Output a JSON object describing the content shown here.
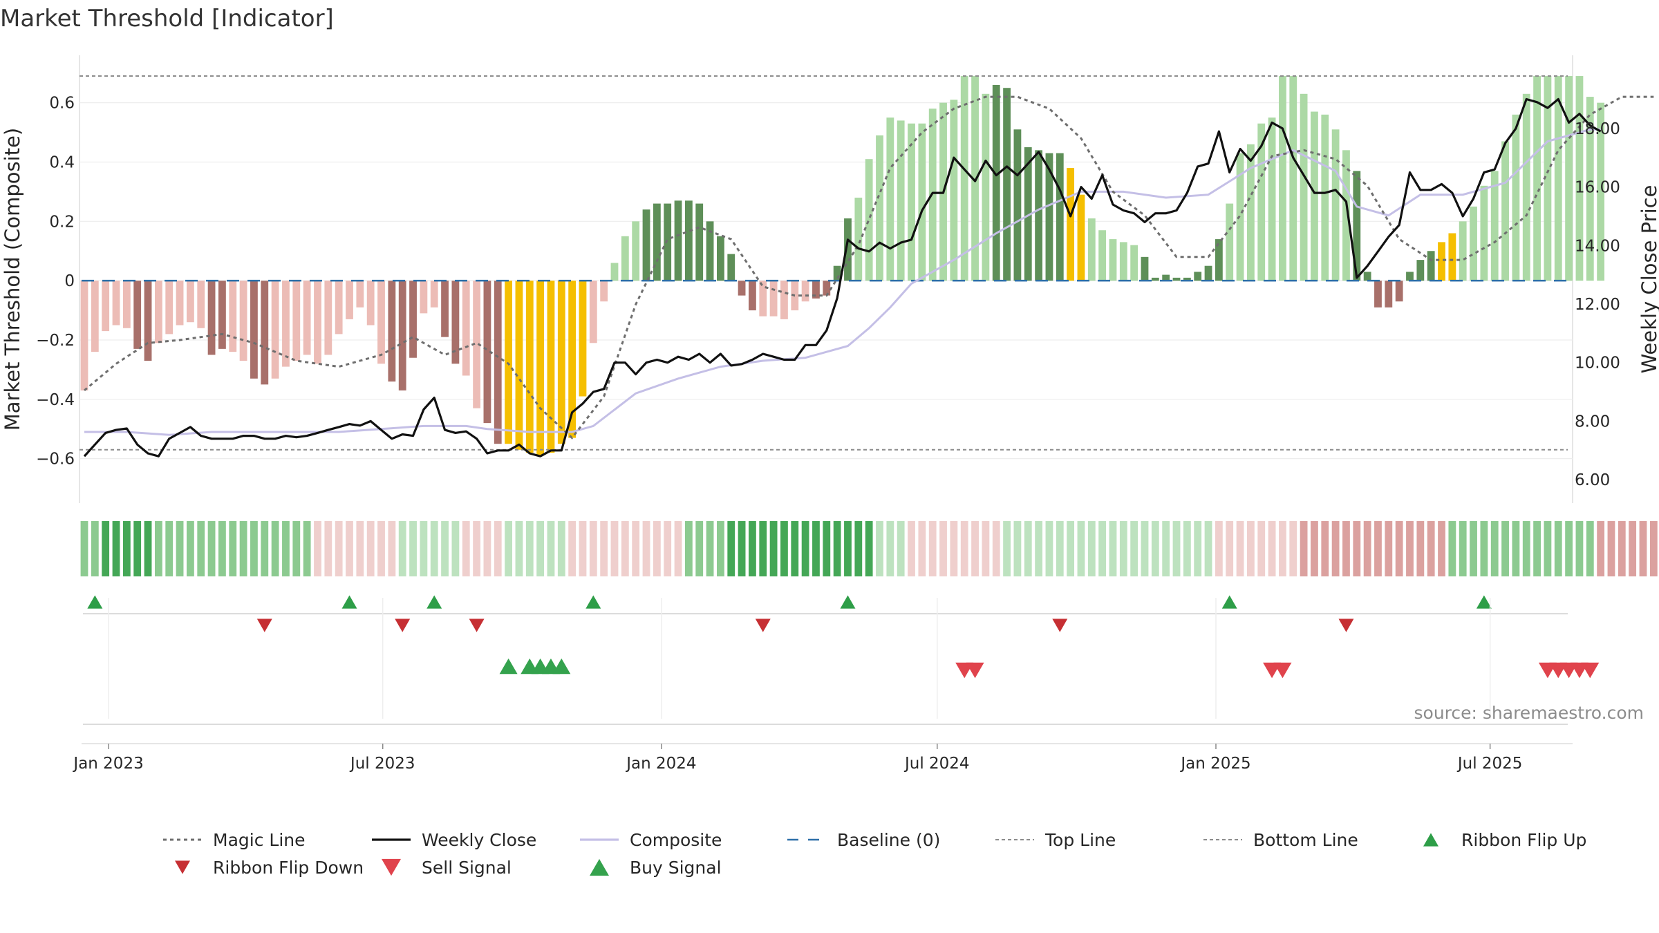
{
  "page": {
    "title": "Market Threshold [Indicator]",
    "source": "source: sharemaestro.com"
  },
  "colors": {
    "dark_green": "#5e8f58",
    "light_green": "#acd9a5",
    "dark_red": "#a8706a",
    "light_red": "#ecbcb6",
    "gold": "#f5bf00",
    "magic": "#6e6e6e",
    "close": "#111111",
    "composite": "#c4bfe6",
    "baseline": "#2c6fa8",
    "ref_line": "#8c8c8c",
    "flip_up": "#2e9e48",
    "flip_down": "#c62f33",
    "sell": "#e0434c",
    "buy": "#34a24d"
  },
  "chart_data": {
    "type": "bar",
    "title": "Market Threshold [Indicator]",
    "x_start": "2022-12-16",
    "x_interval": "weekly",
    "left_axis": {
      "label": "Market Threshold (Composite)",
      "ticks": [
        0.6,
        0.4,
        0.2,
        0,
        -0.2,
        -0.4,
        -0.6
      ],
      "tick_labels": [
        "0.6",
        "0.4",
        "0.2",
        "0",
        "−0.2",
        "−0.4",
        "−0.6"
      ],
      "range": [
        -0.75,
        0.76
      ]
    },
    "right_axis": {
      "label": "Weekly Close Price",
      "ticks": [
        18,
        16,
        14,
        12,
        10,
        8,
        6
      ],
      "tick_labels": [
        "18.00",
        "16.00",
        "14.00",
        "12.00",
        "10.00",
        "8.00",
        "6.00"
      ],
      "range": [
        5.2,
        20.5
      ]
    },
    "x_ticks": [
      {
        "label": "Jan 2023",
        "date": "2023-01-01"
      },
      {
        "label": "Jul 2023",
        "date": "2023-07-01"
      },
      {
        "label": "Jan 2024",
        "date": "2024-01-01"
      },
      {
        "label": "Jul 2024",
        "date": "2024-07-01"
      },
      {
        "label": "Jan 2025",
        "date": "2025-01-01"
      },
      {
        "label": "Jul 2025",
        "date": "2025-07-01"
      }
    ],
    "top_line": 0.69,
    "bottom_line": -0.57,
    "composite_bars": [
      -0.37,
      -0.24,
      -0.17,
      -0.15,
      -0.16,
      -0.23,
      -0.27,
      -0.21,
      -0.18,
      -0.15,
      -0.14,
      -0.16,
      -0.25,
      -0.23,
      -0.24,
      -0.27,
      -0.33,
      -0.35,
      -0.33,
      -0.29,
      -0.27,
      -0.25,
      -0.28,
      -0.25,
      -0.18,
      -0.13,
      -0.09,
      -0.15,
      -0.28,
      -0.34,
      -0.37,
      -0.26,
      -0.11,
      -0.09,
      -0.19,
      -0.28,
      -0.32,
      -0.43,
      -0.48,
      -0.55,
      -0.55,
      -0.57,
      -0.58,
      -0.59,
      -0.58,
      -0.55,
      -0.53,
      -0.39,
      -0.21,
      -0.07,
      0.06,
      0.15,
      0.2,
      0.24,
      0.26,
      0.26,
      0.27,
      0.27,
      0.26,
      0.2,
      0.15,
      0.09,
      -0.05,
      -0.1,
      -0.12,
      -0.12,
      -0.13,
      -0.1,
      -0.07,
      -0.06,
      -0.05,
      0.05,
      0.21,
      0.28,
      0.41,
      0.49,
      0.55,
      0.54,
      0.53,
      0.53,
      0.58,
      0.6,
      0.61,
      0.69,
      0.69,
      0.63,
      0.66,
      0.65,
      0.51,
      0.45,
      0.44,
      0.43,
      0.43,
      0.38,
      0.29,
      0.21,
      0.17,
      0.14,
      0.13,
      0.12,
      0.08,
      0.01,
      0.02,
      0.01,
      0.01,
      0.03,
      0.05,
      0.14,
      0.26,
      0.43,
      0.46,
      0.53,
      0.55,
      0.69,
      0.69,
      0.63,
      0.57,
      0.56,
      0.51,
      0.44,
      0.37,
      0.03,
      -0.09,
      -0.09,
      -0.07,
      0.03,
      0.07,
      0.1,
      0.13,
      0.16,
      0.2,
      0.25,
      0.32,
      0.37,
      0.47,
      0.56,
      0.63,
      0.69,
      0.69,
      0.69,
      0.69,
      0.69,
      0.62,
      0.6
    ],
    "bar_classes": "LLLLLDDLLLLLDDLLDDLLLLLLLLLLLDDDLLDDLLDDGGGGGGGGLLLLlDDDDDDDDDDDlllllDDDDLLLLllllllLLlDDDDDDDGGlllllDDDDDDDDllllllllllllDDDDDDDDGGlllllllLLLLlllDDDDDDDDDDGGGGGGl",
    "magic_line": [
      [
        0,
        -0.37
      ],
      [
        3,
        -0.28
      ],
      [
        6,
        -0.21
      ],
      [
        9,
        -0.2
      ],
      [
        13,
        -0.18
      ],
      [
        16,
        -0.21
      ],
      [
        20,
        -0.27
      ],
      [
        24,
        -0.29
      ],
      [
        28,
        -0.25
      ],
      [
        31,
        -0.19
      ],
      [
        34,
        -0.25
      ],
      [
        37,
        -0.21
      ],
      [
        40,
        -0.28
      ],
      [
        43,
        -0.43
      ],
      [
        46,
        -0.53
      ],
      [
        49,
        -0.39
      ],
      [
        52,
        -0.08
      ],
      [
        55,
        0.14
      ],
      [
        58,
        0.18
      ],
      [
        61,
        0.14
      ],
      [
        64,
        -0.02
      ],
      [
        67,
        -0.05
      ],
      [
        70,
        -0.05
      ],
      [
        73,
        0.12
      ],
      [
        76,
        0.38
      ],
      [
        79,
        0.5
      ],
      [
        82,
        0.58
      ],
      [
        85,
        0.62
      ],
      [
        88,
        0.62
      ],
      [
        91,
        0.58
      ],
      [
        94,
        0.48
      ],
      [
        97,
        0.3
      ],
      [
        100,
        0.22
      ],
      [
        103,
        0.08
      ],
      [
        106,
        0.08
      ],
      [
        109,
        0.22
      ],
      [
        112,
        0.42
      ],
      [
        115,
        0.44
      ],
      [
        118,
        0.41
      ],
      [
        121,
        0.32
      ],
      [
        124,
        0.14
      ],
      [
        127,
        0.07
      ],
      [
        130,
        0.07
      ],
      [
        133,
        0.13
      ],
      [
        136,
        0.22
      ],
      [
        139,
        0.44
      ],
      [
        142,
        0.56
      ],
      [
        145,
        0.62
      ],
      [
        148,
        0.62
      ]
    ],
    "weekly_close": [
      [
        0,
        6.8
      ],
      [
        1,
        7.2
      ],
      [
        2,
        7.6
      ],
      [
        3,
        7.7
      ],
      [
        4,
        7.75
      ],
      [
        5,
        7.2
      ],
      [
        6,
        6.9
      ],
      [
        7,
        6.8
      ],
      [
        8,
        7.4
      ],
      [
        9,
        7.6
      ],
      [
        10,
        7.8
      ],
      [
        11,
        7.5
      ],
      [
        12,
        7.4
      ],
      [
        13,
        7.4
      ],
      [
        14,
        7.4
      ],
      [
        15,
        7.5
      ],
      [
        16,
        7.5
      ],
      [
        17,
        7.4
      ],
      [
        18,
        7.4
      ],
      [
        19,
        7.5
      ],
      [
        20,
        7.45
      ],
      [
        21,
        7.5
      ],
      [
        22,
        7.6
      ],
      [
        23,
        7.7
      ],
      [
        24,
        7.8
      ],
      [
        25,
        7.9
      ],
      [
        26,
        7.85
      ],
      [
        27,
        8.0
      ],
      [
        28,
        7.7
      ],
      [
        29,
        7.4
      ],
      [
        30,
        7.55
      ],
      [
        31,
        7.5
      ],
      [
        32,
        8.4
      ],
      [
        33,
        8.8
      ],
      [
        34,
        7.7
      ],
      [
        35,
        7.6
      ],
      [
        36,
        7.65
      ],
      [
        37,
        7.4
      ],
      [
        38,
        6.9
      ],
      [
        39,
        7.0
      ],
      [
        40,
        7.0
      ],
      [
        41,
        7.2
      ],
      [
        42,
        6.9
      ],
      [
        43,
        6.8
      ],
      [
        44,
        7.0
      ],
      [
        45,
        7.0
      ],
      [
        46,
        8.3
      ],
      [
        47,
        8.6
      ],
      [
        48,
        9.0
      ],
      [
        49,
        9.1
      ],
      [
        50,
        10.0
      ],
      [
        51,
        10.0
      ],
      [
        52,
        9.6
      ],
      [
        53,
        10.0
      ],
      [
        54,
        10.1
      ],
      [
        55,
        10.0
      ],
      [
        56,
        10.2
      ],
      [
        57,
        10.1
      ],
      [
        58,
        10.3
      ],
      [
        59,
        10.0
      ],
      [
        60,
        10.3
      ],
      [
        61,
        9.9
      ],
      [
        62,
        9.95
      ],
      [
        63,
        10.1
      ],
      [
        64,
        10.3
      ],
      [
        65,
        10.2
      ],
      [
        66,
        10.1
      ],
      [
        67,
        10.1
      ],
      [
        68,
        10.6
      ],
      [
        69,
        10.6
      ],
      [
        70,
        11.1
      ],
      [
        71,
        12.2
      ],
      [
        72,
        14.2
      ],
      [
        73,
        13.9
      ],
      [
        74,
        13.8
      ],
      [
        75,
        14.1
      ],
      [
        76,
        13.9
      ],
      [
        77,
        14.1
      ],
      [
        78,
        14.2
      ],
      [
        79,
        15.2
      ],
      [
        80,
        15.8
      ],
      [
        81,
        15.8
      ],
      [
        82,
        17.0
      ],
      [
        83,
        16.6
      ],
      [
        84,
        16.2
      ],
      [
        85,
        16.9
      ],
      [
        86,
        16.4
      ],
      [
        87,
        16.7
      ],
      [
        88,
        16.4
      ],
      [
        89,
        16.8
      ],
      [
        90,
        17.2
      ],
      [
        91,
        16.6
      ],
      [
        92,
        15.9
      ],
      [
        93,
        15.0
      ],
      [
        94,
        16.0
      ],
      [
        95,
        15.6
      ],
      [
        96,
        16.4
      ],
      [
        97,
        15.4
      ],
      [
        98,
        15.2
      ],
      [
        99,
        15.1
      ],
      [
        100,
        14.8
      ],
      [
        101,
        15.1
      ],
      [
        102,
        15.1
      ],
      [
        103,
        15.2
      ],
      [
        104,
        15.8
      ],
      [
        105,
        16.7
      ],
      [
        106,
        16.8
      ],
      [
        107,
        17.9
      ],
      [
        108,
        16.5
      ],
      [
        109,
        17.3
      ],
      [
        110,
        16.9
      ],
      [
        111,
        17.4
      ],
      [
        112,
        18.2
      ],
      [
        113,
        18.0
      ],
      [
        114,
        17.0
      ],
      [
        115,
        16.4
      ],
      [
        116,
        15.8
      ],
      [
        117,
        15.8
      ],
      [
        118,
        15.9
      ],
      [
        119,
        15.5
      ],
      [
        120,
        12.9
      ],
      [
        121,
        13.3
      ],
      [
        122,
        13.8
      ],
      [
        123,
        14.3
      ],
      [
        124,
        14.7
      ],
      [
        125,
        16.5
      ],
      [
        126,
        15.9
      ],
      [
        127,
        15.9
      ],
      [
        128,
        16.1
      ],
      [
        129,
        15.8
      ],
      [
        130,
        15.0
      ],
      [
        131,
        15.6
      ],
      [
        132,
        16.5
      ],
      [
        133,
        16.6
      ],
      [
        134,
        17.5
      ],
      [
        135,
        18.0
      ],
      [
        136,
        19.0
      ],
      [
        137,
        18.9
      ],
      [
        138,
        18.7
      ],
      [
        139,
        19.0
      ],
      [
        140,
        18.2
      ],
      [
        141,
        18.5
      ],
      [
        142,
        18.1
      ],
      [
        143,
        17.9
      ]
    ],
    "composite_line": [
      [
        0,
        -0.51
      ],
      [
        4,
        -0.51
      ],
      [
        8,
        -0.52
      ],
      [
        12,
        -0.51
      ],
      [
        20,
        -0.51
      ],
      [
        24,
        -0.51
      ],
      [
        28,
        -0.5
      ],
      [
        32,
        -0.49
      ],
      [
        36,
        -0.49
      ],
      [
        38,
        -0.5
      ],
      [
        42,
        -0.51
      ],
      [
        46,
        -0.51
      ],
      [
        48,
        -0.49
      ],
      [
        52,
        -0.38
      ],
      [
        56,
        -0.33
      ],
      [
        60,
        -0.29
      ],
      [
        64,
        -0.27
      ],
      [
        68,
        -0.26
      ],
      [
        72,
        -0.22
      ],
      [
        74,
        -0.16
      ],
      [
        76,
        -0.09
      ],
      [
        78,
        -0.01
      ],
      [
        82,
        0.07
      ],
      [
        86,
        0.16
      ],
      [
        90,
        0.24
      ],
      [
        94,
        0.3
      ],
      [
        98,
        0.3
      ],
      [
        102,
        0.28
      ],
      [
        106,
        0.29
      ],
      [
        110,
        0.38
      ],
      [
        114,
        0.44
      ],
      [
        118,
        0.37
      ],
      [
        120,
        0.25
      ],
      [
        123,
        0.22
      ],
      [
        126,
        0.29
      ],
      [
        130,
        0.29
      ],
      [
        134,
        0.33
      ],
      [
        138,
        0.47
      ],
      [
        142,
        0.51
      ],
      [
        143,
        0.51
      ]
    ],
    "ribbon": "llggggglllllllllllllllrrrrrrrrLLLLLLrrrrLLLLLLrrrrrrrrrrrllllggggggggggggggLLLrrrrrrrrrLLLLLLLLLLLLLLLLLLLLrrrrrrrrRRRRRRRRRRRRRRllllllllllllllRRRRRRRRRRRRRLLLLLLLLLLLLLLLLLL",
    "ribbon_flip_up": [
      1,
      25,
      33,
      48,
      72,
      108,
      132
    ],
    "ribbon_flip_down": [
      17,
      30,
      37,
      64,
      92,
      119
    ],
    "buy_signal": [
      40,
      42,
      43,
      44,
      45
    ],
    "sell_signal": [
      83,
      84,
      112,
      113,
      138,
      139,
      140,
      141,
      142
    ],
    "legend": [
      "Magic Line",
      "Weekly Close",
      "Composite",
      "Baseline (0)",
      "Top Line",
      "Bottom Line",
      "Ribbon Flip Up",
      "Ribbon Flip Down",
      "Sell Signal",
      "Buy Signal"
    ]
  }
}
